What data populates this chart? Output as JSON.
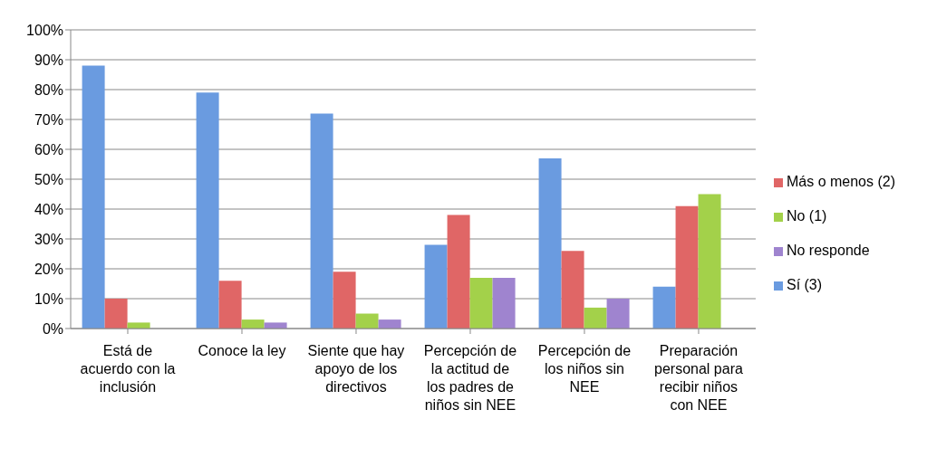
{
  "chart_data": {
    "type": "bar",
    "categories": [
      "Está de acuerdo con la inclusión",
      "Conoce la ley",
      "Siente que hay apoyo de los directivos",
      "Percepción de la actitud de los padres de niños sin NEE",
      "Percepción de los niños sin NEE",
      "Preparación personal para recibir niños con NEE"
    ],
    "series": [
      {
        "name": "Sí (3)",
        "color": "#6a9be0",
        "values": [
          88,
          79,
          72,
          28,
          57,
          14
        ]
      },
      {
        "name": "Más o menos (2)",
        "color": "#e06666",
        "values": [
          10,
          16,
          19,
          38,
          26,
          41
        ]
      },
      {
        "name": "No (1)",
        "color": "#a3d14a",
        "values": [
          2,
          3,
          5,
          17,
          7,
          45
        ]
      },
      {
        "name": "No responde",
        "color": "#9f84cf",
        "values": [
          0,
          2,
          3,
          17,
          10,
          0
        ]
      }
    ],
    "ylim": [
      0,
      100
    ],
    "yticks": [
      {
        "value": 0,
        "label": "0%"
      },
      {
        "value": 10,
        "label": "10%"
      },
      {
        "value": 20,
        "label": "20%"
      },
      {
        "value": 30,
        "label": "30%"
      },
      {
        "value": 40,
        "label": "40%"
      },
      {
        "value": 50,
        "label": "50%"
      },
      {
        "value": 60,
        "label": "60%"
      },
      {
        "value": 70,
        "label": "70%"
      },
      {
        "value": 80,
        "label": "80%"
      },
      {
        "value": 90,
        "label": "90%"
      },
      {
        "value": 100,
        "label": "100%"
      }
    ],
    "grid": "y",
    "legend": "right"
  }
}
